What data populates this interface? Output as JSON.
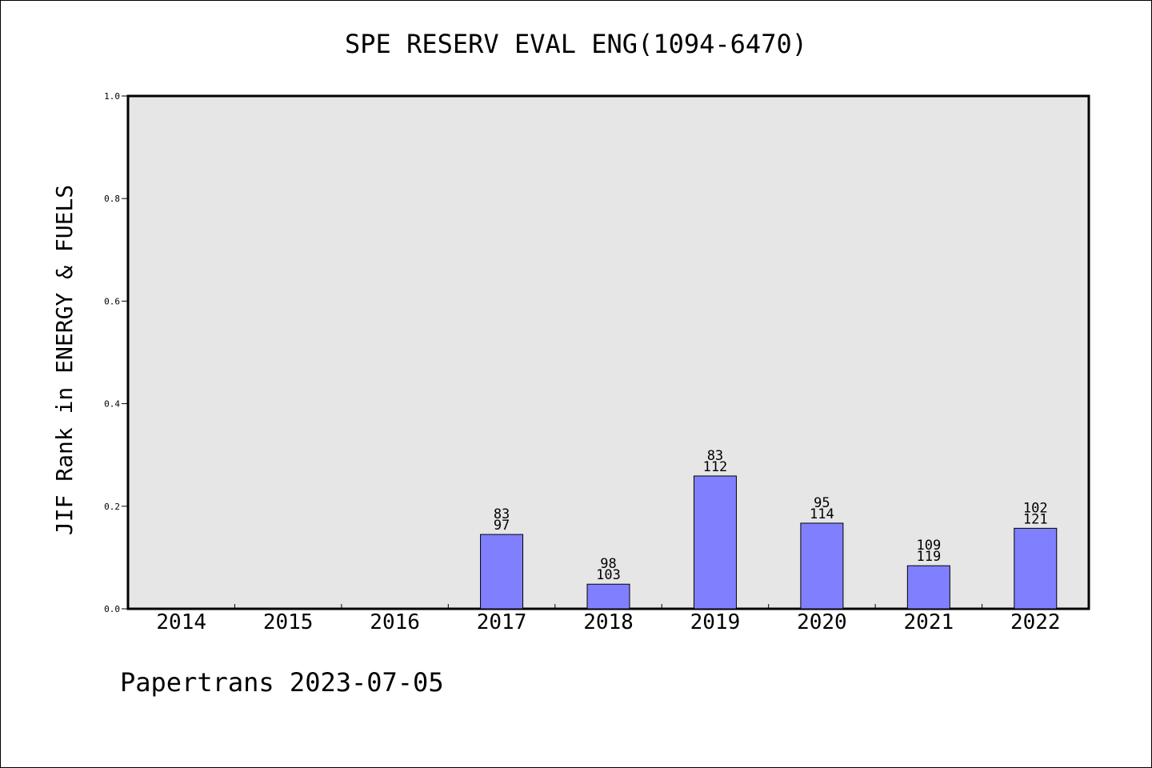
{
  "chart_data": {
    "type": "bar",
    "title": "SPE RESERV EVAL ENG(1094-6470)",
    "ylabel": "JIF Rank in ENERGY & FUELS",
    "xlabel": "",
    "ylim": [
      0,
      1.0
    ],
    "yticks": [
      "0.0",
      "0.2",
      "0.4",
      "0.6",
      "0.8",
      "1.0"
    ],
    "grid": false,
    "categories": [
      "2014",
      "2015",
      "2016",
      "2017",
      "2018",
      "2019",
      "2020",
      "2021",
      "2022"
    ],
    "values": [
      null,
      null,
      null,
      0.145,
      0.048,
      0.259,
      0.167,
      0.084,
      0.157
    ],
    "rank_labels": [
      "",
      "",
      "",
      "83",
      "98",
      "83",
      "95",
      "109",
      "102"
    ],
    "total_labels": [
      "",
      "",
      "",
      "97",
      "103",
      "112",
      "114",
      "119",
      "121"
    ],
    "colors": {
      "bar": "#8080ff",
      "plot_background": "#e6e6e6"
    }
  },
  "footer": "Papertrans 2023-07-05"
}
